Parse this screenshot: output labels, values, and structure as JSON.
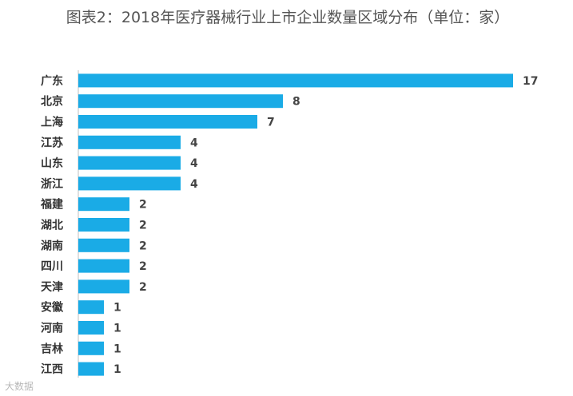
{
  "chart_data": {
    "type": "bar",
    "orientation": "horizontal",
    "title": "图表2：2018年医疗器械行业上市企业数量区域分布（单位：家）",
    "categories": [
      "广东",
      "北京",
      "上海",
      "江苏",
      "山东",
      "浙江",
      "福建",
      "湖北",
      "湖南",
      "四川",
      "天津",
      "安徽",
      "河南",
      "吉林",
      "江西"
    ],
    "values": [
      17,
      8,
      7,
      4,
      4,
      4,
      2,
      2,
      2,
      2,
      2,
      1,
      1,
      1,
      1
    ],
    "xlim": [
      0,
      17
    ],
    "grid": false,
    "legend": "none",
    "bar_color": "#1AABE6"
  },
  "watermark": "大数据"
}
